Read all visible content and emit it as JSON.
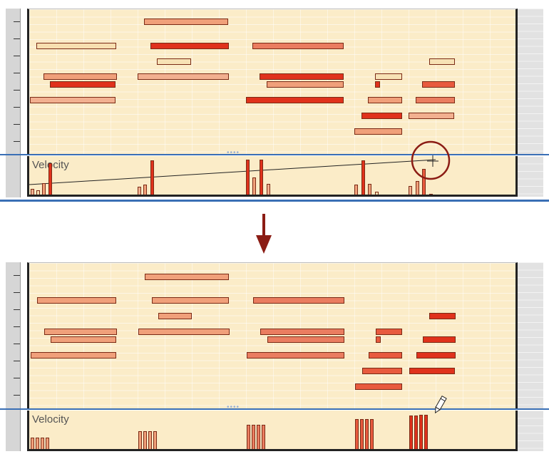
{
  "top_panel": {
    "velocity_label": "Velocity",
    "tool": "line-draw",
    "tool_icon": "crosshair-cursor-icon"
  },
  "bottom_panel": {
    "velocity_label": "Velocity",
    "tool": "pencil",
    "tool_icon": "pencil-cursor-icon"
  },
  "transition_icon": "arrow-down-icon",
  "colors": {
    "grid_background": "#fbecc8",
    "lane_divider": "#3a6fb5",
    "note_low": "#f7dfb0",
    "note_mid": "#f0a07a",
    "note_high": "#e0321c",
    "transition_arrow": "#8b1c14"
  }
}
